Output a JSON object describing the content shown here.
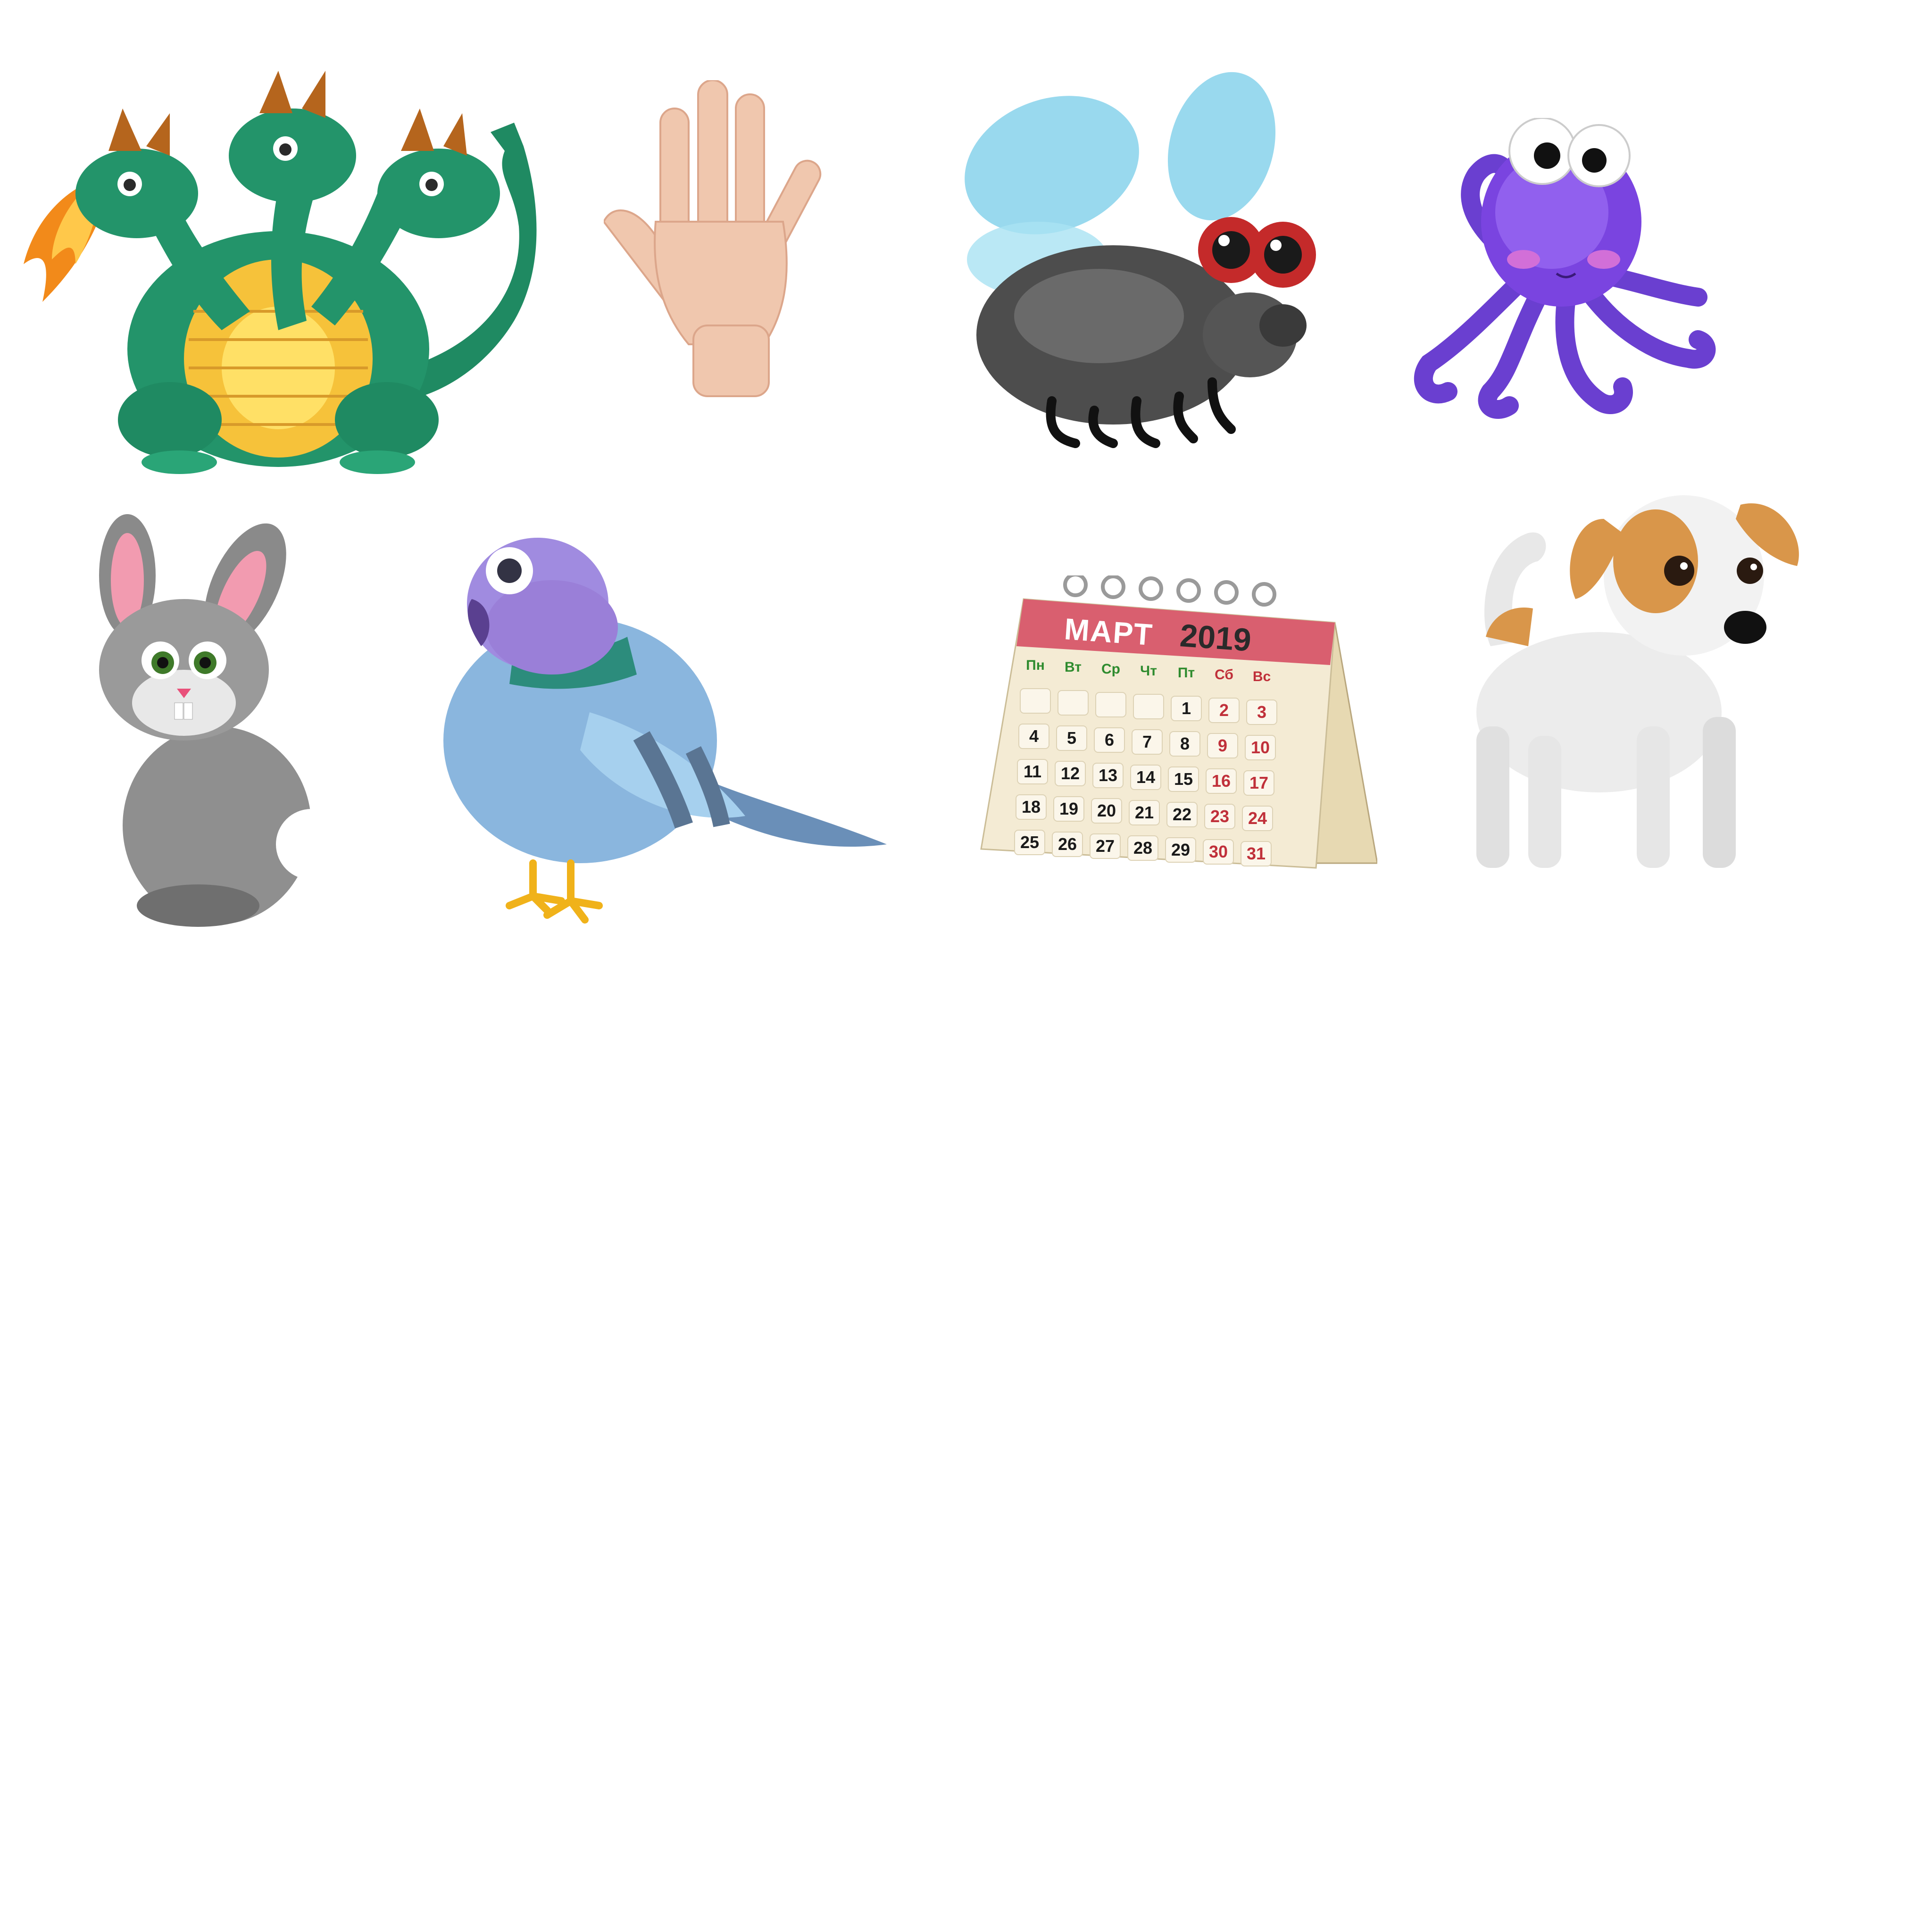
{
  "items": [
    {
      "name": "dragon",
      "icon": "three-headed-dragon"
    },
    {
      "name": "hand",
      "icon": "open-palm-hand"
    },
    {
      "name": "fly",
      "icon": "cartoon-fly"
    },
    {
      "name": "octopus",
      "icon": "purple-octopus"
    },
    {
      "name": "rabbit",
      "icon": "grey-rabbit"
    },
    {
      "name": "pigeon",
      "icon": "blue-pigeon"
    },
    {
      "name": "calendar",
      "icon": "desk-calendar"
    },
    {
      "name": "dog",
      "icon": "jack-russell-dog"
    }
  ],
  "calendar": {
    "month": "МАРТ",
    "year": "2019",
    "weekdays": [
      "Пн",
      "Вт",
      "Ср",
      "Чт",
      "Пт",
      "Сб",
      "Вс"
    ],
    "weekday_colors": [
      "#2e8b2e",
      "#2e8b2e",
      "#2e8b2e",
      "#2e8b2e",
      "#2e8b2e",
      "#c0303a",
      "#c0303a"
    ],
    "leading_blank_days": 4,
    "days": [
      "1",
      "2",
      "3",
      "4",
      "5",
      "6",
      "7",
      "8",
      "9",
      "10",
      "11",
      "12",
      "13",
      "14",
      "15",
      "16",
      "17",
      "18",
      "19",
      "20",
      "21",
      "22",
      "23",
      "24",
      "25",
      "26",
      "27",
      "28",
      "29",
      "30",
      "31"
    ],
    "weekend_color": "#c0303a",
    "weekday_day_color": "#1a1a1a",
    "header_color": "#d95f6f"
  }
}
